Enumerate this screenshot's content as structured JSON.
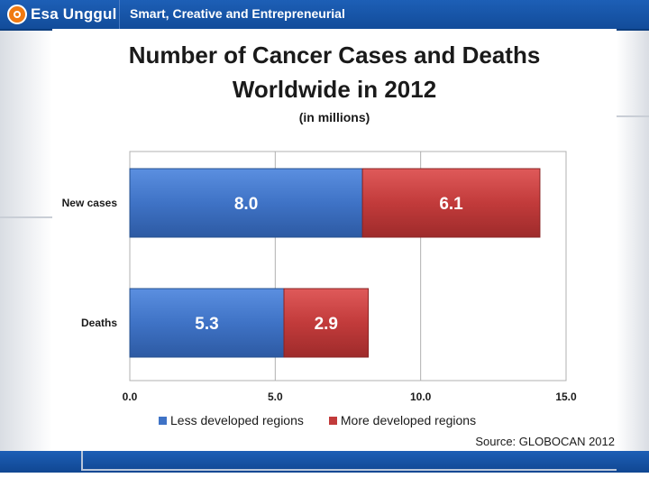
{
  "header": {
    "logo_text": "Esa Unggul",
    "tagline": "Smart, Creative and Entrepreneurial"
  },
  "colors": {
    "brand_blue": "#1d5fb6",
    "logo_orange": "#f07a12",
    "series_less": "#3f73c6",
    "series_more": "#c23b3b"
  },
  "chart_data": {
    "type": "bar",
    "orientation": "horizontal",
    "stacked": true,
    "title_line1": "Number of Cancer Cases and Deaths",
    "title_line2": "Worldwide in 2012",
    "subtitle": "(in millions)",
    "categories": [
      "New cases",
      "Deaths"
    ],
    "series": [
      {
        "name": "Less developed regions",
        "values": [
          8.0,
          5.3
        ],
        "labels": [
          "8.0",
          "5.3"
        ],
        "color": "#3f73c6"
      },
      {
        "name": "More developed regions",
        "values": [
          6.1,
          2.9
        ],
        "labels": [
          "6.1",
          "2.9"
        ],
        "color": "#c23b3b"
      }
    ],
    "xlim": [
      0,
      15
    ],
    "xticks": [
      "0.0",
      "5.0",
      "10.0",
      "15.0"
    ],
    "xtick_values": [
      0,
      5,
      10,
      15
    ],
    "grid": true,
    "legend_position": "bottom",
    "source": "Source: GLOBOCAN 2012"
  }
}
